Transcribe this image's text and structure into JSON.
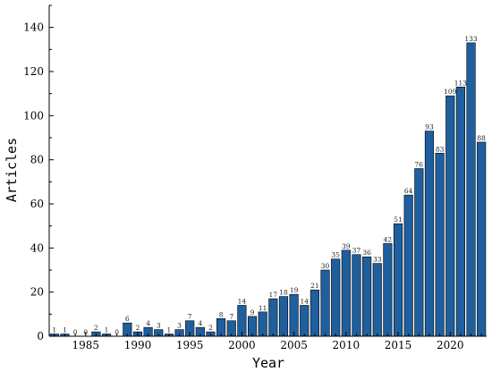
{
  "chart_data": {
    "type": "bar",
    "title": "",
    "xlabel": "Year",
    "ylabel": "Articles",
    "xlim": [
      1981.5,
      2023.5
    ],
    "ylim": [
      0,
      150
    ],
    "x_ticks": [
      1985,
      1990,
      1995,
      2000,
      2005,
      2010,
      2015,
      2020
    ],
    "y_ticks": [
      0,
      20,
      40,
      60,
      80,
      100,
      120,
      140
    ],
    "grid": false,
    "bar_color": "#1f5f9e",
    "categories": [
      1982,
      1983,
      1984,
      1985,
      1986,
      1987,
      1988,
      1989,
      1990,
      1991,
      1992,
      1993,
      1994,
      1995,
      1996,
      1997,
      1998,
      1999,
      2000,
      2001,
      2002,
      2003,
      2004,
      2005,
      2006,
      2007,
      2008,
      2009,
      2010,
      2011,
      2012,
      2013,
      2014,
      2015,
      2016,
      2017,
      2018,
      2019,
      2020,
      2021,
      2022,
      2023
    ],
    "values": [
      1,
      1,
      0,
      0,
      2,
      1,
      0,
      6,
      2,
      4,
      3,
      1,
      3,
      7,
      4,
      2,
      8,
      7,
      14,
      9,
      11,
      17,
      18,
      19,
      14,
      21,
      30,
      35,
      39,
      37,
      36,
      33,
      42,
      51,
      64,
      76,
      93,
      83,
      109,
      113,
      133,
      88
    ]
  }
}
